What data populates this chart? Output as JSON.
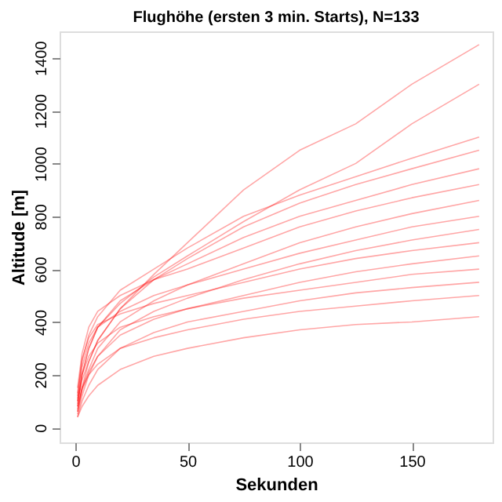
{
  "chart_data": {
    "type": "line",
    "title": "Flughöhe (ersten 3 min. Starts), N=133",
    "xlabel": "Sekunden",
    "ylabel": "Altitude [m]",
    "x": [
      1,
      3,
      6,
      10,
      20,
      35,
      50,
      75,
      100,
      125,
      150,
      180
    ],
    "xlim": [
      -7,
      186
    ],
    "xticks": [
      0,
      50,
      100,
      150
    ],
    "ylim": [
      -56,
      1500
    ],
    "yticks": [
      0,
      200,
      400,
      600,
      800,
      1000,
      1200,
      1400
    ],
    "grid": false,
    "legend": false,
    "series": [
      {
        "color": "#ff0000",
        "values": [
          100,
          180,
          250,
          330,
          450,
          580,
          700,
          900,
          1050,
          1150,
          1300,
          1450
        ]
      },
      {
        "color": "#ff0000",
        "values": [
          80,
          200,
          300,
          380,
          470,
          570,
          650,
          780,
          900,
          1000,
          1150,
          1300
        ]
      },
      {
        "color": "#ff0000",
        "values": [
          120,
          250,
          350,
          420,
          520,
          600,
          680,
          800,
          880,
          950,
          1020,
          1100
        ]
      },
      {
        "color": "#ff0000",
        "values": [
          60,
          150,
          250,
          330,
          450,
          560,
          640,
          760,
          850,
          920,
          980,
          1050
        ]
      },
      {
        "color": "#ff0000",
        "values": [
          90,
          200,
          300,
          380,
          480,
          560,
          620,
          720,
          800,
          860,
          920,
          980
        ]
      },
      {
        "color": "#ff0000",
        "values": [
          150,
          280,
          380,
          440,
          500,
          560,
          600,
          680,
          760,
          820,
          870,
          920
        ]
      },
      {
        "color": "#ff0000",
        "values": [
          70,
          150,
          220,
          300,
          400,
          480,
          540,
          620,
          700,
          760,
          810,
          860
        ]
      },
      {
        "color": "#ff0000",
        "values": [
          110,
          230,
          320,
          380,
          440,
          500,
          540,
          600,
          660,
          710,
          760,
          800
        ]
      },
      {
        "color": "#ff0000",
        "values": [
          50,
          120,
          200,
          270,
          370,
          440,
          490,
          560,
          620,
          670,
          710,
          750
        ]
      },
      {
        "color": "#ff0000",
        "values": [
          130,
          260,
          340,
          390,
          430,
          470,
          500,
          550,
          600,
          640,
          670,
          700
        ]
      },
      {
        "color": "#ff0000",
        "values": [
          60,
          140,
          210,
          270,
          350,
          410,
          450,
          500,
          550,
          590,
          620,
          650
        ]
      },
      {
        "color": "#ff0000",
        "values": [
          100,
          200,
          270,
          320,
          380,
          420,
          450,
          490,
          520,
          550,
          580,
          600
        ]
      },
      {
        "color": "#ff0000",
        "values": [
          40,
          100,
          160,
          220,
          300,
          360,
          400,
          440,
          480,
          510,
          530,
          550
        ]
      },
      {
        "color": "#ff0000",
        "values": [
          80,
          150,
          200,
          240,
          300,
          340,
          370,
          410,
          440,
          460,
          480,
          500
        ]
      },
      {
        "color": "#ff0000",
        "values": [
          40,
          80,
          120,
          160,
          220,
          270,
          300,
          340,
          370,
          390,
          400,
          420
        ]
      }
    ]
  }
}
